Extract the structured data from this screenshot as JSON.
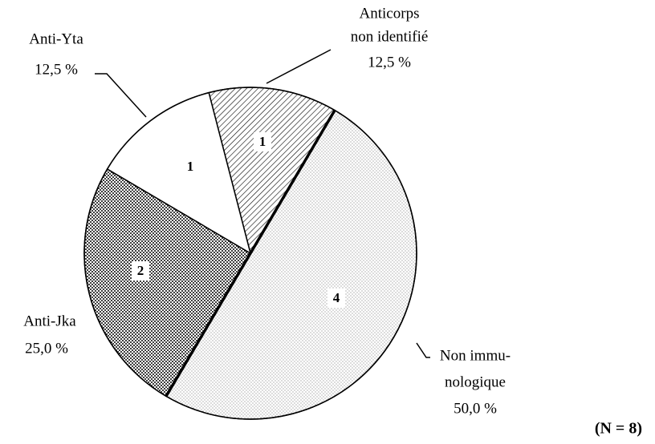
{
  "chart_data": {
    "type": "pie",
    "categories": [
      [
        "Anticorps",
        "non identifié"
      ],
      [
        "Non immu-",
        "nologique"
      ],
      [
        "Anti-Jka"
      ],
      [
        "Anti-Yta"
      ]
    ],
    "values": [
      12.5,
      50.0,
      25.0,
      12.5
    ],
    "value_labels": [
      "12,5 %",
      "50,0 %",
      "25,0 %",
      "12,5 %"
    ],
    "counts": [
      1,
      4,
      2,
      1
    ],
    "patterns": [
      "hatch",
      "dots-light",
      "dots-dense",
      "none"
    ],
    "start_angle": -14.5,
    "note": "(N = 8)"
  }
}
